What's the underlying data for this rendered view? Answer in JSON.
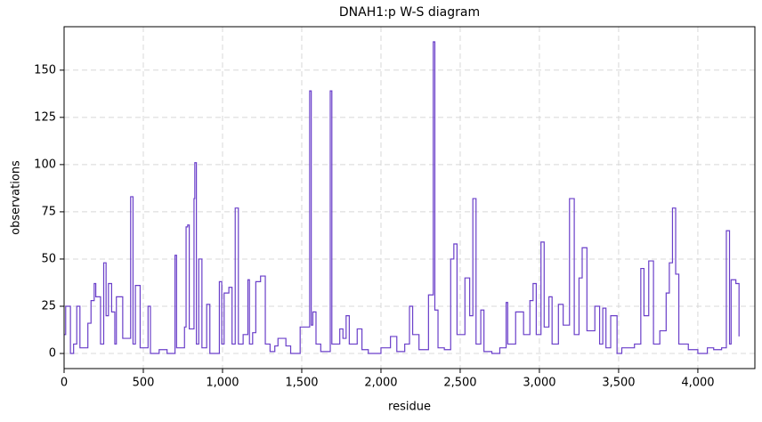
{
  "chart_data": {
    "type": "line",
    "drawstyle": "steps",
    "title": "DNAH1:p W-S diagram",
    "x_label": "residue",
    "y_label": "observations",
    "grid": true,
    "xlim": [
      0,
      4360
    ],
    "ylim": [
      -8,
      173
    ],
    "xticks": [
      0,
      500,
      {
        "value": 1000,
        "label": "1,000"
      },
      {
        "value": 1500,
        "label": "1,500"
      },
      {
        "value": 2000,
        "label": "2,000"
      },
      {
        "value": 2500,
        "label": "2,500"
      },
      {
        "value": 3000,
        "label": "3,000"
      },
      {
        "value": 3500,
        "label": "3,500"
      },
      {
        "value": 4000,
        "label": "4,000"
      }
    ],
    "yticks": [
      0,
      25,
      50,
      75,
      100,
      125,
      150
    ],
    "series": [
      {
        "name": "observations",
        "color": "#6a3fc9",
        "x": [
          0,
          10,
          40,
          60,
          80,
          100,
          150,
          170,
          190,
          200,
          230,
          250,
          265,
          280,
          300,
          320,
          330,
          370,
          420,
          435,
          450,
          480,
          530,
          545,
          600,
          650,
          700,
          710,
          760,
          770,
          780,
          790,
          820,
          825,
          835,
          850,
          870,
          900,
          920,
          980,
          995,
          1010,
          1040,
          1060,
          1080,
          1100,
          1130,
          1160,
          1170,
          1190,
          1210,
          1240,
          1270,
          1300,
          1330,
          1350,
          1400,
          1430,
          1490,
          1550,
          1560,
          1570,
          1590,
          1620,
          1680,
          1690,
          1740,
          1760,
          1780,
          1800,
          1850,
          1880,
          1920,
          2000,
          2060,
          2100,
          2150,
          2180,
          2200,
          2240,
          2300,
          2330,
          2340,
          2360,
          2400,
          2440,
          2460,
          2480,
          2530,
          2560,
          2580,
          2600,
          2630,
          2650,
          2700,
          2750,
          2790,
          2800,
          2850,
          2900,
          2940,
          2960,
          2980,
          3010,
          3030,
          3060,
          3080,
          3120,
          3150,
          3190,
          3220,
          3250,
          3270,
          3300,
          3350,
          3380,
          3400,
          3420,
          3450,
          3490,
          3520,
          3600,
          3640,
          3660,
          3690,
          3720,
          3760,
          3800,
          3820,
          3840,
          3860,
          3880,
          3940,
          4000,
          4060,
          4100,
          4150,
          4180,
          4200,
          4210,
          4240,
          4260
        ],
        "values": [
          10,
          25,
          0,
          5,
          25,
          3,
          16,
          28,
          37,
          30,
          5,
          48,
          20,
          37,
          22,
          5,
          30,
          8,
          83,
          5,
          36,
          3,
          25,
          0,
          2,
          0,
          52,
          3,
          14,
          67,
          68,
          13,
          82,
          101,
          5,
          50,
          3,
          26,
          0,
          38,
          5,
          32,
          35,
          5,
          77,
          5,
          10,
          39,
          5,
          11,
          38,
          41,
          5,
          1,
          4,
          8,
          4,
          0,
          14,
          139,
          15,
          22,
          5,
          1,
          139,
          5,
          13,
          8,
          20,
          5,
          13,
          2,
          0,
          3,
          9,
          1,
          5,
          25,
          10,
          2,
          31,
          165,
          23,
          3,
          2,
          50,
          58,
          10,
          40,
          20,
          82,
          5,
          23,
          1,
          0,
          3,
          27,
          5,
          22,
          10,
          28,
          37,
          10,
          59,
          14,
          30,
          5,
          26,
          15,
          82,
          10,
          40,
          56,
          12,
          25,
          5,
          24,
          3,
          20,
          0,
          3,
          5,
          45,
          20,
          49,
          5,
          12,
          32,
          48,
          77,
          42,
          5,
          2,
          0,
          3,
          2,
          3,
          65,
          5,
          39,
          37,
          9
        ]
      }
    ]
  }
}
